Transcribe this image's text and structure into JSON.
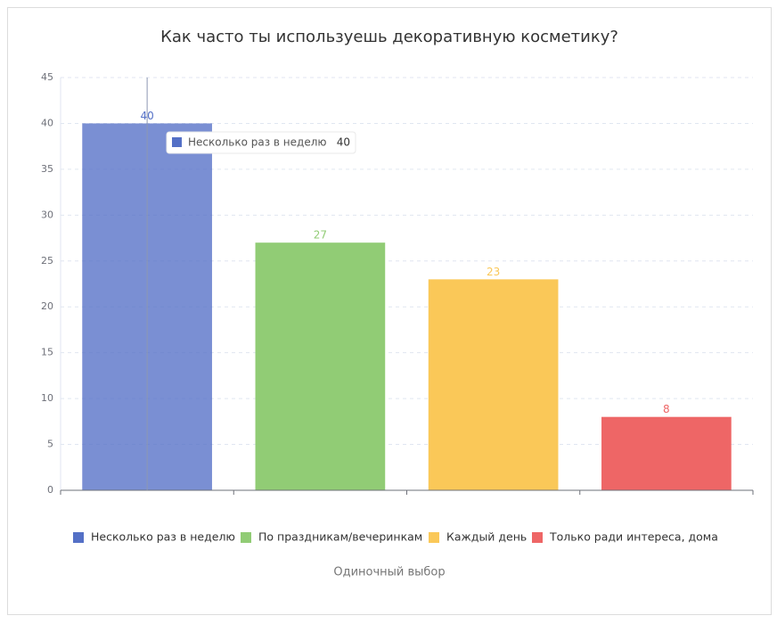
{
  "chart_data": {
    "type": "bar",
    "title": "Как часто ты используешь декоративную косметику?",
    "categories": [
      "Несколько раз в неделю",
      "По праздникам/вечеринкам",
      "Каждый день",
      "Только ради интереса, дома"
    ],
    "values": [
      40,
      27,
      23,
      8
    ],
    "colors": [
      "#5470c6",
      "#91cc75",
      "#fac858",
      "#ee6666"
    ],
    "ylim": [
      0,
      45
    ],
    "yticks": [
      0,
      5,
      10,
      15,
      20,
      25,
      30,
      35,
      40,
      45
    ],
    "grid": true,
    "legend": "bottom",
    "note": "Одиночный выбор"
  }
}
